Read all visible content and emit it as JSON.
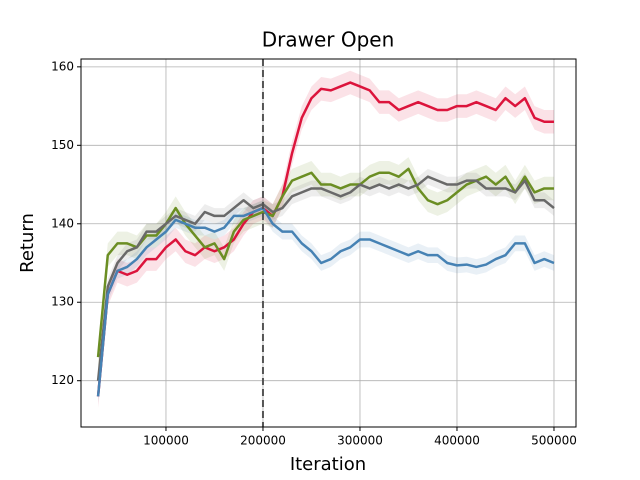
{
  "chart_data": {
    "type": "line",
    "title": "Drawer Open",
    "x_label": "Iteration",
    "y_label": "Return",
    "x": [
      30000,
      40000,
      50000,
      60000,
      70000,
      80000,
      90000,
      100000,
      110000,
      120000,
      130000,
      140000,
      150000,
      160000,
      170000,
      180000,
      190000,
      200000,
      210000,
      220000,
      230000,
      240000,
      250000,
      260000,
      270000,
      280000,
      290000,
      300000,
      310000,
      320000,
      330000,
      340000,
      350000,
      360000,
      370000,
      380000,
      390000,
      400000,
      410000,
      420000,
      430000,
      440000,
      450000,
      460000,
      470000,
      480000,
      490000,
      500000
    ],
    "series": [
      {
        "color": "#dc143c",
        "band": 1.5,
        "values": [
          118,
          131,
          134,
          133.5,
          134,
          135.5,
          135.5,
          137,
          138,
          136.5,
          136,
          137,
          136.5,
          137,
          138,
          140,
          141.5,
          142,
          141,
          143.5,
          149,
          153.5,
          156,
          157.2,
          157,
          157.5,
          158,
          157.5,
          157,
          155.5,
          155.5,
          154.5,
          155,
          155.5,
          155,
          154.5,
          154.5,
          155,
          155,
          155.5,
          155,
          154.5,
          156,
          155,
          156,
          153.5,
          153,
          153
        ]
      },
      {
        "color": "#6b8e23",
        "band": 1.5,
        "values": [
          123,
          136,
          137.5,
          137.5,
          137,
          138.5,
          138.5,
          140,
          142,
          140,
          138.5,
          137,
          137.5,
          135.5,
          139,
          140.5,
          141,
          141.5,
          141,
          143.5,
          145.5,
          146,
          146.5,
          145,
          145,
          144.5,
          145,
          145,
          146,
          146.5,
          146.5,
          146,
          147,
          144.5,
          143,
          142.5,
          143,
          144,
          145,
          145.5,
          146,
          145,
          146,
          144,
          146,
          144,
          144.5,
          144.5
        ]
      },
      {
        "color": "#696969",
        "band": 1,
        "values": [
          120,
          132,
          135,
          136.5,
          137,
          139,
          139,
          140,
          141,
          140.5,
          140,
          141.5,
          141,
          141,
          142,
          143,
          142,
          142.5,
          141.5,
          142,
          143.5,
          144,
          144.5,
          144.5,
          144,
          143.5,
          144,
          145,
          144.5,
          145,
          144.5,
          145,
          144.5,
          145,
          146,
          145.5,
          145,
          145,
          145.5,
          145.5,
          144.5,
          144.5,
          144.5,
          144,
          145.5,
          143,
          143,
          142
        ]
      },
      {
        "color": "#4682b4",
        "band": 1,
        "values": [
          118,
          131,
          134,
          134.5,
          135.5,
          137,
          138,
          139,
          140.5,
          140,
          139.5,
          139.5,
          139,
          139.5,
          141,
          141,
          141.5,
          142,
          140,
          139,
          139,
          137.5,
          136.5,
          135,
          135.5,
          136.5,
          137,
          138,
          138,
          137.5,
          137,
          136.5,
          136,
          136.5,
          136,
          136,
          135,
          134.7,
          134.8,
          134.5,
          134.8,
          135.5,
          136,
          137.5,
          137.5,
          135,
          135.5,
          135
        ]
      }
    ],
    "xlim": [
      12400,
      522700
    ],
    "ylim": [
      114.1,
      161.0
    ],
    "xticks": [
      100000,
      200000,
      300000,
      400000,
      500000
    ],
    "yticks": [
      120,
      130,
      140,
      150,
      160
    ],
    "vline": 200000,
    "grid": true
  }
}
